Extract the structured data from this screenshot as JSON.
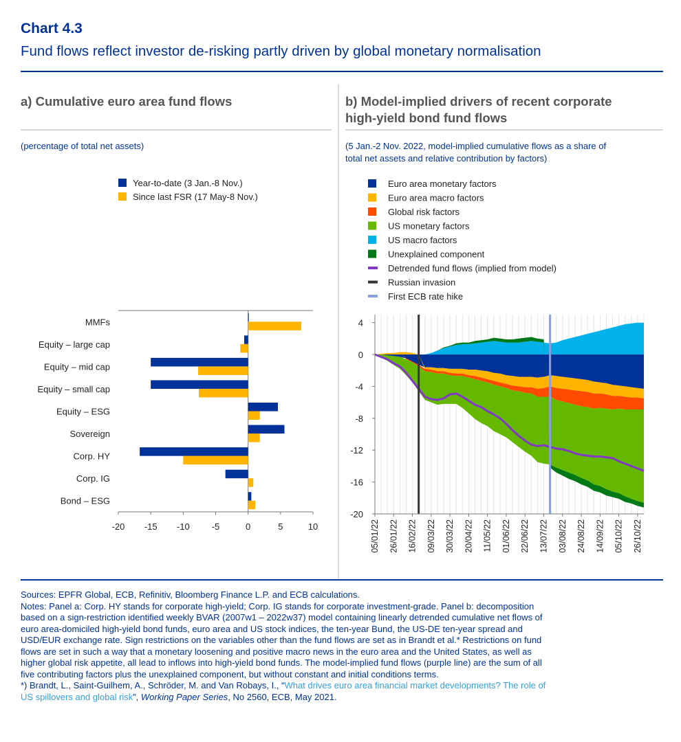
{
  "header": {
    "chart_label": "Chart 4.3",
    "title": "Fund flows reflect investor de-risking partly driven by global monetary normalisation"
  },
  "panel_a": {
    "title": "a) Cumulative euro area fund flows",
    "units": "(percentage of total net assets)"
  },
  "panel_b": {
    "title_line1": "b) Model-implied drivers of recent corporate",
    "title_line2": "high-yield bond fund flows",
    "units_line1": "(5 Jan.-2 Nov. 2022, model-implied cumulative flows as a share of",
    "units_line2": "total net assets and relative contribution by factors)"
  },
  "colors": {
    "navy": "#003299",
    "orange": "#ffb400",
    "red": "#ff4b00",
    "green": "#65b800",
    "lightblue": "#00b1ea",
    "darkgreen": "#007816",
    "purple": "#8139c6",
    "darkgray": "#353535",
    "lavender": "#8b9fe0"
  },
  "chart_data": [
    {
      "type": "bar",
      "orientation": "horizontal",
      "title": "a) Cumulative euro area fund flows",
      "ylabel": "(percentage of total net assets)",
      "categories": [
        "MMFs",
        "Equity – large cap",
        "Equity – mid cap",
        "Equity – small cap",
        "Equity – ESG",
        "Sovereign",
        "Corp. HY",
        "Corp. IG",
        "Bond – ESG"
      ],
      "series": [
        {
          "name": "Year-to-date (3 Jan.-8 Nov.)",
          "color": "#003299",
          "values": [
            0.1,
            -0.6,
            -15.0,
            -15.0,
            4.6,
            5.6,
            -16.7,
            -3.5,
            0.5
          ]
        },
        {
          "name": "Since last FSR (17 May-8 Nov.)",
          "color": "#ffb400",
          "values": [
            8.2,
            -1.2,
            -7.7,
            -7.6,
            1.8,
            1.8,
            -10.0,
            0.8,
            1.1
          ]
        }
      ],
      "xlim": [
        -20,
        10
      ],
      "xticks": [
        "-20",
        "-15",
        "-10",
        "-5",
        "0",
        "5",
        "10"
      ]
    },
    {
      "type": "area",
      "stacked": true,
      "title": "b) Model-implied drivers of recent corporate high-yield bond fund flows",
      "ylim": [
        -20,
        5
      ],
      "yticks": [
        "4",
        "0",
        "-4",
        "-8",
        "-12",
        "-16",
        "-20"
      ],
      "x": [
        "05/01/22",
        "12/01/22",
        "19/01/22",
        "26/01/22",
        "02/02/22",
        "09/02/22",
        "16/02/22",
        "23/02/22",
        "02/03/22",
        "09/03/22",
        "16/03/22",
        "23/03/22",
        "30/03/22",
        "06/04/22",
        "13/04/22",
        "20/04/22",
        "27/04/22",
        "04/05/22",
        "11/05/22",
        "18/05/22",
        "25/05/22",
        "01/06/22",
        "08/06/22",
        "15/06/22",
        "22/06/22",
        "29/06/22",
        "06/07/22",
        "13/07/22",
        "20/07/22",
        "27/07/22",
        "03/08/22",
        "10/08/22",
        "17/08/22",
        "24/08/22",
        "31/08/22",
        "07/09/22",
        "14/09/22",
        "21/09/22",
        "28/09/22",
        "05/10/22",
        "12/10/22",
        "19/10/22",
        "26/10/22",
        "02/11/22"
      ],
      "x_tick_labels": [
        "05/01/22",
        "26/01/22",
        "16/02/22",
        "09/03/22",
        "30/03/22",
        "20/04/22",
        "11/05/22",
        "01/06/22",
        "22/06/22",
        "13/07/22",
        "03/08/22",
        "24/08/22",
        "14/09/22",
        "05/10/22",
        "26/10/22"
      ],
      "series": [
        {
          "name": "Euro area monetary factors",
          "color": "#003299",
          "values": [
            0,
            0,
            -0.1,
            -0.2,
            -0.3,
            -0.5,
            -0.9,
            -1.3,
            -1.6,
            -1.6,
            -1.7,
            -1.7,
            -1.8,
            -1.8,
            -1.8,
            -1.9,
            -1.9,
            -2.0,
            -2.1,
            -2.3,
            -2.4,
            -2.6,
            -2.7,
            -2.8,
            -2.8,
            -2.8,
            -2.9,
            -2.8,
            -2.6,
            -2.7,
            -2.8,
            -2.9,
            -3.0,
            -3.1,
            -3.2,
            -3.4,
            -3.5,
            -3.6,
            -3.8,
            -3.9,
            -4.0,
            -4.1,
            -4.2,
            -4.3
          ]
        },
        {
          "name": "Euro area macro factors",
          "color": "#ffb400",
          "values": [
            0,
            0.1,
            0.2,
            0.2,
            0.3,
            0.3,
            0.2,
            0,
            -0.2,
            -0.3,
            -0.4,
            -0.4,
            -0.5,
            -0.6,
            -0.6,
            -0.7,
            -0.8,
            -0.9,
            -1.0,
            -1.0,
            -1.1,
            -1.1,
            -1.2,
            -1.2,
            -1.3,
            -1.3,
            -1.4,
            -1.4,
            -1.4,
            -1.5,
            -1.5,
            -1.5,
            -1.5,
            -1.5,
            -1.5,
            -1.5,
            -1.4,
            -1.4,
            -1.4,
            -1.3,
            -1.3,
            -1.3,
            -1.2,
            -1.2
          ]
        },
        {
          "name": "Global risk factors",
          "color": "#ff4b00",
          "values": [
            0,
            0,
            0,
            0,
            0,
            -0.1,
            -0.1,
            -0.2,
            -0.3,
            -0.3,
            -0.3,
            -0.3,
            -0.3,
            -0.3,
            -0.3,
            -0.3,
            -0.4,
            -0.4,
            -0.4,
            -0.5,
            -0.5,
            -0.5,
            -0.6,
            -0.6,
            -0.7,
            -0.8,
            -1.0,
            -1.1,
            -1.3,
            -1.5,
            -1.6,
            -1.7,
            -1.8,
            -1.9,
            -1.9,
            -1.9,
            -1.8,
            -1.8,
            -1.7,
            -1.6,
            -1.6,
            -1.5,
            -1.5,
            -1.4
          ]
        },
        {
          "name": "US monetary factors",
          "color": "#65b800",
          "values": [
            0,
            -0.4,
            -0.7,
            -1.1,
            -1.5,
            -2.0,
            -2.5,
            -3.1,
            -3.6,
            -3.8,
            -3.9,
            -3.8,
            -3.6,
            -3.5,
            -4.0,
            -4.5,
            -5.0,
            -5.3,
            -5.5,
            -5.8,
            -6.0,
            -6.2,
            -6.5,
            -7.0,
            -7.4,
            -7.8,
            -8.2,
            -8.4,
            -8.5,
            -8.5,
            -8.6,
            -8.7,
            -8.8,
            -9.0,
            -9.2,
            -9.5,
            -9.8,
            -10.1,
            -10.3,
            -10.6,
            -10.9,
            -11.2,
            -11.5,
            -11.7
          ]
        },
        {
          "name": "US macro factors",
          "color": "#00b1ea",
          "values": [
            0,
            0,
            0,
            0,
            0,
            0,
            0,
            0,
            0,
            0.2,
            0.5,
            0.8,
            1.0,
            1.2,
            1.3,
            1.3,
            1.4,
            1.5,
            1.6,
            1.7,
            1.6,
            1.5,
            1.5,
            1.5,
            1.6,
            1.7,
            1.6,
            1.5,
            1.4,
            1.5,
            1.8,
            2.0,
            2.2,
            2.4,
            2.6,
            2.8,
            3.0,
            3.2,
            3.4,
            3.6,
            3.8,
            3.9,
            4.0,
            4.0
          ]
        },
        {
          "name": "Unexplained component",
          "color": "#007816",
          "values": [
            0,
            0,
            0,
            0,
            0,
            0,
            0,
            0,
            0,
            0,
            0,
            0.1,
            0.1,
            0.2,
            0.2,
            0.2,
            0.3,
            0.3,
            0.3,
            0.4,
            0.4,
            0.4,
            0.4,
            0.5,
            0.5,
            0.5,
            0.4,
            0.4,
            -0.4,
            -0.6,
            -0.7,
            -0.8,
            -0.8,
            -0.8,
            -0.8,
            -0.8,
            -0.8,
            -0.8,
            -0.7,
            -0.7,
            -0.7,
            -0.6,
            -0.6,
            -0.6
          ]
        }
      ],
      "line": {
        "name": "Detrended fund flows (implied from model)",
        "color": "#8139c6",
        "values": [
          0,
          -0.3,
          -0.6,
          -1.1,
          -1.5,
          -2.3,
          -3.3,
          -4.3,
          -5.3,
          -5.6,
          -5.7,
          -5.5,
          -5.0,
          -4.9,
          -5.3,
          -5.8,
          -6.3,
          -6.6,
          -7.1,
          -7.5,
          -8.0,
          -8.7,
          -9.5,
          -10.2,
          -10.8,
          -11.3,
          -11.5,
          -11.4,
          -11.6,
          -11.8,
          -11.9,
          -12.1,
          -12.4,
          -12.6,
          -12.7,
          -12.8,
          -12.8,
          -12.9,
          -13.0,
          -13.4,
          -13.7,
          -14.0,
          -14.3,
          -14.6
        ]
      },
      "vlines": [
        {
          "name": "Russian invasion",
          "color": "#353535",
          "x": "23/02/22"
        },
        {
          "name": "First ECB rate hike",
          "color": "#8b9fe0",
          "x": "20/07/22"
        }
      ]
    }
  ],
  "footnotes": {
    "sources": "Sources: EPFR Global, ECB, Refinitiv, Bloomberg Finance L.P. and ECB calculations.",
    "notes": [
      "Notes: Panel a: Corp. HY stands for corporate high-yield; Corp. IG stands for corporate investment-grade. Panel b: decomposition",
      "based on a sign-restriction identified weekly BVAR (2007w1 – 2022w37) model containing linearly detrended cumulative net flows of",
      "euro area-domiciled high-yield bond funds, euro area and US stock indices, the ten-year Bund, the US-DE ten-year spread and",
      "USD/EUR exchange rate. Sign restrictions on the variables other than the fund flows are set as in Brandt et al.* Restrictions on fund",
      "flows are set in such a way that a monetary loosening and positive macro news in the euro area and the United States, as well as",
      "higher global risk appetite, all lead to inflows into high-yield bond funds. The model-implied fund flows (purple line) are the sum of all",
      "five contributing factors plus the unexplained component, but without constant and initial conditions terms."
    ],
    "ref_prefix": "*) Brandt, L., Saint-Guilhem, A., Schröder, M. and Van Robays, I., “",
    "ref_link_1": "What drives euro area financial market developments? The role of",
    "ref_link_2": "US spillovers and global risk",
    "ref_mid": "”, ",
    "ref_series": "Working Paper Series",
    "ref_suffix": ", No 2560, ECB, May 2021."
  }
}
